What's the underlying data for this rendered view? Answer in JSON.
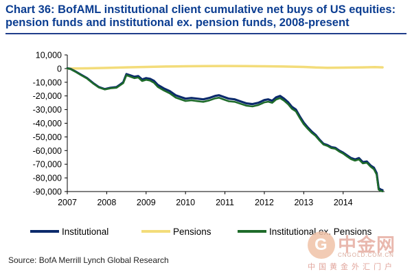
{
  "title_line1": "Chart 36: BofAML institutional client cumulative net buys of US equities:",
  "title_line2": "pension funds and institutional ex. pension funds, 2008-present",
  "source": "Source: BofA Merrill Lynch Global Research",
  "watermark": {
    "logo_glyph": "G",
    "brand": "中金网",
    "url": "CNGOLD.COM.CN",
    "subtitle": "中国黄金外汇门户"
  },
  "colors": {
    "institutional": "#0b2a6b",
    "pensions": "#f3dc7a",
    "inst_ex_pensions": "#1e6b2a",
    "title": "#0b3d91",
    "axis": "#000000"
  },
  "chart_data": {
    "type": "line",
    "title": "BofAML institutional client cumulative net buys of US equities",
    "xlabel": "",
    "ylabel": "",
    "xlim": [
      2007,
      2015.05
    ],
    "ylim": [
      -90000,
      10000
    ],
    "yticks": [
      10000,
      0,
      -10000,
      -20000,
      -30000,
      -40000,
      -50000,
      -60000,
      -70000,
      -80000,
      -90000
    ],
    "ytick_labels": [
      "10,000",
      "0",
      "-10,000",
      "-20,000",
      "-30,000",
      "-40,000",
      "-50,000",
      "-60,000",
      "-70,000",
      "-80,000",
      "-90,000"
    ],
    "xticks": [
      2007,
      2008,
      2009,
      2010,
      2011,
      2012,
      2013,
      2014
    ],
    "xtick_labels": [
      "2007",
      "2008",
      "2009",
      "2010",
      "2011",
      "2012",
      "2013",
      "2014"
    ],
    "legend_position": "bottom",
    "series": [
      {
        "name": "Institutional",
        "key": "institutional",
        "x": [
          2007.0,
          2007.08,
          2007.2,
          2007.35,
          2007.5,
          2007.65,
          2007.8,
          2007.95,
          2008.1,
          2008.25,
          2008.35,
          2008.42,
          2008.5,
          2008.6,
          2008.7,
          2008.8,
          2008.9,
          2009.0,
          2009.1,
          2009.2,
          2009.3,
          2009.45,
          2009.6,
          2009.75,
          2009.9,
          2010.0,
          2010.15,
          2010.3,
          2010.45,
          2010.6,
          2010.75,
          2010.85,
          2010.95,
          2011.1,
          2011.25,
          2011.4,
          2011.55,
          2011.7,
          2011.85,
          2012.0,
          2012.1,
          2012.2,
          2012.3,
          2012.4,
          2012.5,
          2012.6,
          2012.7,
          2012.8,
          2012.9,
          2013.0,
          2013.1,
          2013.2,
          2013.3,
          2013.4,
          2013.5,
          2013.6,
          2013.7,
          2013.8,
          2013.9,
          2014.0,
          2014.1,
          2014.2,
          2014.3,
          2014.4,
          2014.5,
          2014.6,
          2014.7,
          2014.78,
          2014.85,
          2014.9,
          2014.95,
          2015.0
        ],
        "values": [
          200,
          -200,
          -2000,
          -4500,
          -7000,
          -10500,
          -13500,
          -15000,
          -14000,
          -13500,
          -11500,
          -10000,
          -4000,
          -5000,
          -6000,
          -5500,
          -8000,
          -7000,
          -7500,
          -9000,
          -12000,
          -14500,
          -16500,
          -19500,
          -21000,
          -22000,
          -21500,
          -22000,
          -22500,
          -21500,
          -20000,
          -19500,
          -20500,
          -22000,
          -22500,
          -24000,
          -25500,
          -26000,
          -25000,
          -23000,
          -22500,
          -23500,
          -21000,
          -20000,
          -22000,
          -24500,
          -28000,
          -30000,
          -35000,
          -39500,
          -43000,
          -46000,
          -48500,
          -52000,
          -55000,
          -56000,
          -57500,
          -58000,
          -60000,
          -61500,
          -63500,
          -65500,
          -66500,
          -65500,
          -68500,
          -68000,
          -71000,
          -72500,
          -76500,
          -87500,
          -88500,
          -89000
        ]
      },
      {
        "name": "Pensions",
        "key": "pensions",
        "x": [
          2007.0,
          2007.5,
          2008.0,
          2008.5,
          2009.0,
          2009.5,
          2010.0,
          2010.5,
          2011.0,
          2011.5,
          2012.0,
          2012.5,
          2013.0,
          2013.3,
          2013.6,
          2014.0,
          2014.5,
          2014.8,
          2015.0
        ],
        "values": [
          0,
          200,
          500,
          900,
          1200,
          1500,
          1700,
          1800,
          1900,
          1800,
          1700,
          1500,
          1200,
          800,
          600,
          700,
          900,
          1100,
          900
        ]
      },
      {
        "name": "Institutional ex. Pensions",
        "key": "inst_ex_pensions",
        "x": [
          2007.0,
          2007.08,
          2007.2,
          2007.35,
          2007.5,
          2007.65,
          2007.8,
          2007.95,
          2008.1,
          2008.25,
          2008.35,
          2008.42,
          2008.5,
          2008.6,
          2008.7,
          2008.8,
          2008.9,
          2009.0,
          2009.1,
          2009.2,
          2009.3,
          2009.45,
          2009.6,
          2009.75,
          2009.9,
          2010.0,
          2010.15,
          2010.3,
          2010.45,
          2010.6,
          2010.75,
          2010.85,
          2010.95,
          2011.1,
          2011.25,
          2011.4,
          2011.55,
          2011.7,
          2011.85,
          2012.0,
          2012.1,
          2012.2,
          2012.3,
          2012.4,
          2012.5,
          2012.6,
          2012.7,
          2012.8,
          2012.9,
          2013.0,
          2013.1,
          2013.2,
          2013.3,
          2013.4,
          2013.5,
          2013.6,
          2013.7,
          2013.8,
          2013.9,
          2014.0,
          2014.1,
          2014.2,
          2014.3,
          2014.4,
          2014.5,
          2014.6,
          2014.7,
          2014.78,
          2014.85,
          2014.9,
          2014.95,
          2015.0
        ],
        "values": [
          200,
          -300,
          -2200,
          -4800,
          -7300,
          -10800,
          -13800,
          -15300,
          -14400,
          -14000,
          -12000,
          -10600,
          -4800,
          -5900,
          -7000,
          -6500,
          -9100,
          -8200,
          -8800,
          -10400,
          -13500,
          -16000,
          -18100,
          -21200,
          -22700,
          -23700,
          -23200,
          -23800,
          -24300,
          -23300,
          -21800,
          -21300,
          -22400,
          -23900,
          -24300,
          -25800,
          -27200,
          -27700,
          -26700,
          -24700,
          -24200,
          -25100,
          -22600,
          -21600,
          -23500,
          -26000,
          -29400,
          -31300,
          -36200,
          -40700,
          -44000,
          -47000,
          -49300,
          -52600,
          -55600,
          -56600,
          -58200,
          -58700,
          -60700,
          -62200,
          -64300,
          -66300,
          -67400,
          -66500,
          -69400,
          -68900,
          -71900,
          -73600,
          -77600,
          -88600,
          -89500,
          -89900
        ]
      }
    ]
  }
}
